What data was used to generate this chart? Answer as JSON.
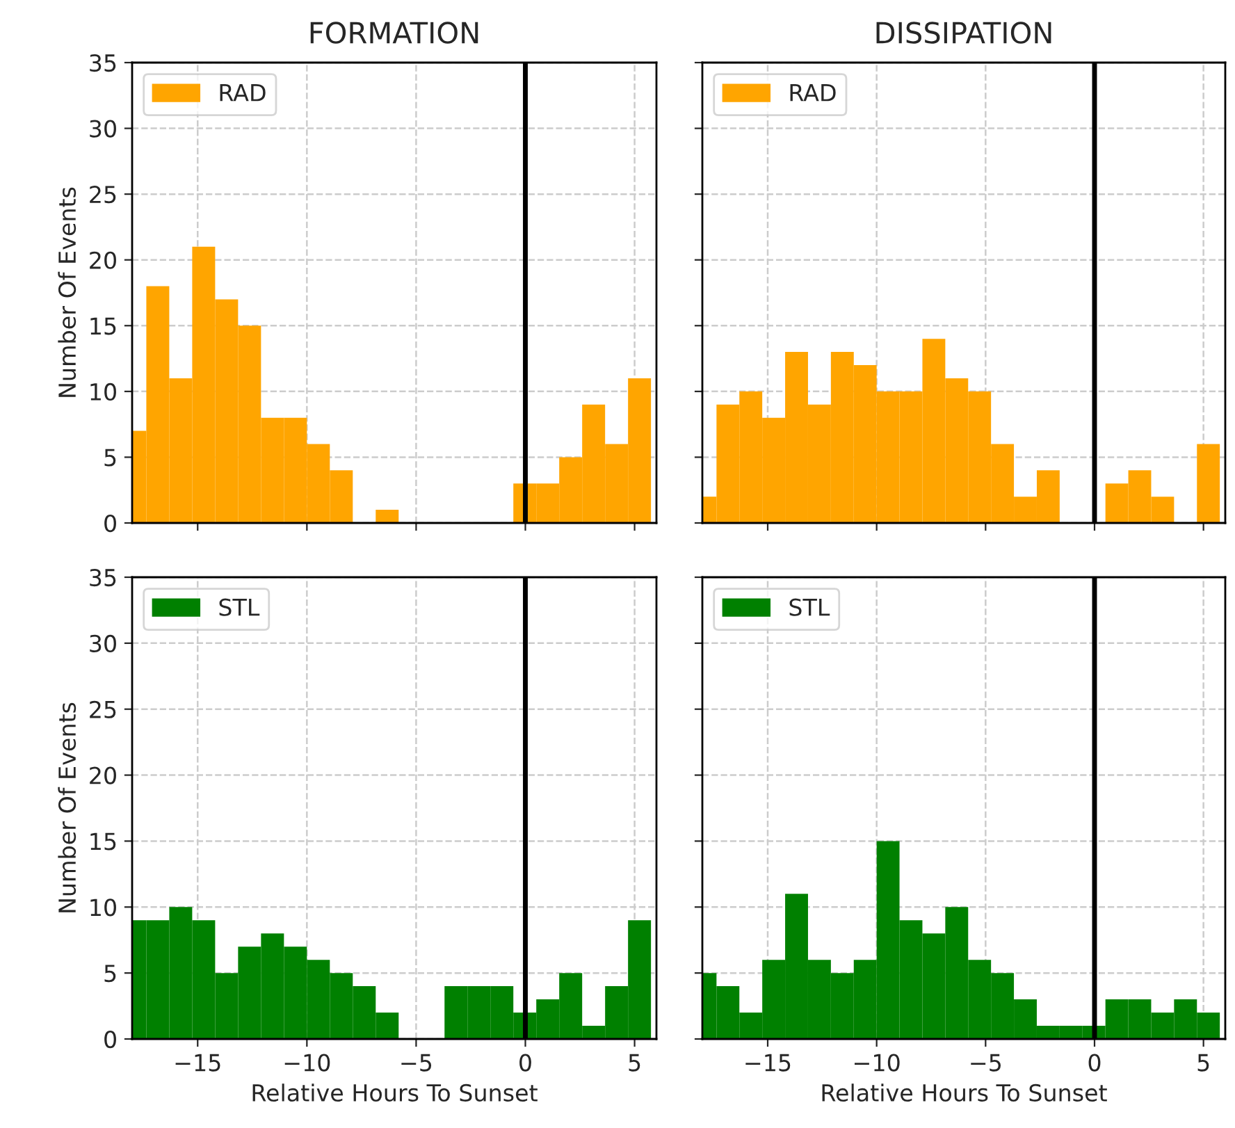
{
  "chart_data": [
    {
      "type": "histogram",
      "title": "FORMATION",
      "ylabel": "Number Of Events",
      "bins": [
        -18.0,
        -17.35,
        -16.3,
        -15.25,
        -14.2,
        -13.15,
        -12.1,
        -11.05,
        -10.0,
        -8.95,
        -7.9,
        -6.85,
        -5.8,
        -0.55,
        0.5,
        1.55,
        2.6,
        3.65,
        4.7,
        5.75
      ],
      "series": [
        {
          "name": "RAD",
          "color": "#ffa500",
          "values": [
            7,
            18,
            11,
            21,
            17,
            15,
            8,
            8,
            6,
            4,
            0,
            1,
            0,
            3,
            3,
            5,
            9,
            6,
            11
          ]
        }
      ],
      "xlim": [
        -18,
        6
      ],
      "xticks": [
        {
          "value": -15,
          "label": null
        },
        {
          "value": -10,
          "label": null
        },
        {
          "value": -5,
          "label": null
        },
        {
          "value": 0,
          "label": null
        },
        {
          "value": 5,
          "label": null
        }
      ],
      "ylim": [
        0,
        35
      ],
      "yticks": [
        0,
        5,
        10,
        15,
        20,
        25,
        30,
        35
      ],
      "tick_labels": "y",
      "grid": true,
      "legend": "top left",
      "ref_lines": [
        {
          "axis": "x",
          "value": 0,
          "color": "#000000"
        }
      ]
    },
    {
      "type": "histogram",
      "title": "DISSIPATION",
      "bins": [
        -18.0,
        -17.35,
        -16.3,
        -15.25,
        -14.2,
        -13.15,
        -12.1,
        -11.05,
        -10.0,
        -8.95,
        -7.9,
        -6.85,
        -5.8,
        -4.75,
        -3.7,
        -2.65,
        -1.6,
        0.5,
        1.55,
        2.6,
        3.65,
        4.7,
        5.75
      ],
      "series": [
        {
          "name": "RAD",
          "color": "#ffa500",
          "values": [
            2,
            9,
            10,
            8,
            13,
            9,
            13,
            12,
            10,
            10,
            14,
            11,
            10,
            6,
            2,
            4,
            0,
            3,
            4,
            2,
            0,
            6
          ]
        }
      ],
      "xlim": [
        -18,
        6
      ],
      "xticks": [
        {
          "value": -15,
          "label": null
        },
        {
          "value": -10,
          "label": null
        },
        {
          "value": -5,
          "label": null
        },
        {
          "value": 0,
          "label": null
        },
        {
          "value": 5,
          "label": null
        }
      ],
      "ylim": [
        0,
        35
      ],
      "yticks": [
        {
          "value": 0,
          "label": null
        },
        {
          "value": 5,
          "label": null
        },
        {
          "value": 10,
          "label": null
        },
        {
          "value": 15,
          "label": null
        },
        {
          "value": 20,
          "label": null
        },
        {
          "value": 25,
          "label": null
        },
        {
          "value": 30,
          "label": null
        },
        {
          "value": 35,
          "label": null
        }
      ],
      "tick_labels": false,
      "grid": true,
      "legend": "top left",
      "ref_lines": [
        {
          "axis": "x",
          "value": 0,
          "color": "#000000"
        }
      ]
    },
    {
      "type": "histogram",
      "xlabel": "Relative Hours To Sunset",
      "ylabel": "Number Of Events",
      "bins": [
        -18.0,
        -17.35,
        -16.3,
        -15.25,
        -14.2,
        -13.15,
        -12.1,
        -11.05,
        -10.0,
        -8.95,
        -7.9,
        -6.85,
        -5.8,
        -3.7,
        -2.65,
        -1.6,
        -0.55,
        0.5,
        1.55,
        2.6,
        3.65,
        4.7,
        5.75
      ],
      "series": [
        {
          "name": "STL",
          "color": "#008000",
          "values": [
            9,
            9,
            10,
            9,
            5,
            7,
            8,
            7,
            6,
            5,
            4,
            2,
            0,
            4,
            4,
            4,
            2,
            3,
            5,
            1,
            4,
            9
          ]
        }
      ],
      "xlim": [
        -18,
        6
      ],
      "xticks": [
        {
          "value": -15,
          "label": "−15"
        },
        {
          "value": -10,
          "label": "−10"
        },
        {
          "value": -5,
          "label": "−5"
        },
        0,
        5
      ],
      "ylim": [
        0,
        35
      ],
      "yticks": [
        0,
        5,
        10,
        15,
        20,
        25,
        30,
        35
      ],
      "grid": true,
      "legend": "top left",
      "ref_lines": [
        {
          "axis": "x",
          "value": 0,
          "color": "#000000"
        }
      ]
    },
    {
      "type": "histogram",
      "xlabel": "Relative Hours To Sunset",
      "bins": [
        -18.0,
        -17.35,
        -16.3,
        -15.25,
        -14.2,
        -13.15,
        -12.1,
        -11.05,
        -10.0,
        -8.95,
        -7.9,
        -6.85,
        -5.8,
        -4.75,
        -3.7,
        -2.65,
        -1.6,
        -0.55,
        0.5,
        1.55,
        2.6,
        3.65,
        4.7,
        5.75
      ],
      "series": [
        {
          "name": "STL",
          "color": "#008000",
          "values": [
            5,
            4,
            2,
            6,
            11,
            6,
            5,
            6,
            15,
            9,
            8,
            10,
            6,
            5,
            3,
            1,
            1,
            1,
            3,
            3,
            2,
            3,
            2
          ]
        }
      ],
      "xlim": [
        -18,
        6
      ],
      "xticks": [
        {
          "value": -15,
          "label": "−15"
        },
        {
          "value": -10,
          "label": "−10"
        },
        {
          "value": -5,
          "label": "−5"
        },
        0,
        5
      ],
      "ylim": [
        0,
        35
      ],
      "yticks": [
        {
          "value": 0,
          "label": null
        },
        {
          "value": 5,
          "label": null
        },
        {
          "value": 10,
          "label": null
        },
        {
          "value": 15,
          "label": null
        },
        {
          "value": 20,
          "label": null
        },
        {
          "value": 25,
          "label": null
        },
        {
          "value": 30,
          "label": null
        },
        {
          "value": 35,
          "label": null
        }
      ],
      "tick_labels": "x",
      "grid": true,
      "legend": "top left",
      "ref_lines": [
        {
          "axis": "x",
          "value": 0,
          "color": "#000000"
        }
      ]
    }
  ]
}
